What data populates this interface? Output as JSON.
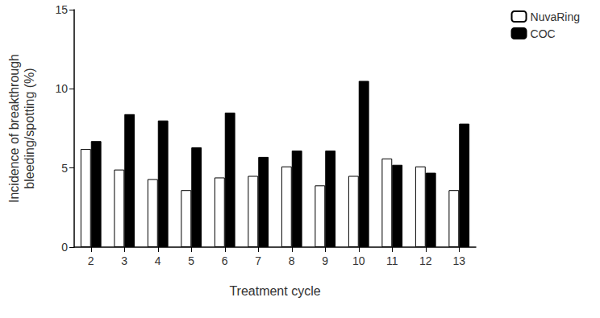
{
  "chart_data": {
    "type": "bar",
    "x_label": "Treatment cycle",
    "y_label": "Incidence of breakthrough\nbleeding/spotting (%)",
    "categories": [
      "2",
      "3",
      "4",
      "5",
      "6",
      "7",
      "8",
      "9",
      "10",
      "11",
      "12",
      "13"
    ],
    "series": [
      {
        "name": "NuvaRing",
        "color": "#ffffff",
        "values": [
          6.2,
          4.9,
          4.3,
          3.6,
          4.4,
          4.5,
          5.1,
          3.9,
          4.5,
          5.6,
          5.1,
          3.6
        ]
      },
      {
        "name": "COC",
        "color": "#000000",
        "values": [
          6.7,
          8.4,
          8.0,
          6.3,
          8.5,
          5.7,
          6.1,
          6.1,
          10.5,
          5.2,
          4.7,
          7.8
        ]
      }
    ],
    "ylim": [
      0,
      15
    ],
    "yticks": [
      0,
      5,
      10,
      15
    ],
    "grid": false,
    "legend": "top-right"
  }
}
